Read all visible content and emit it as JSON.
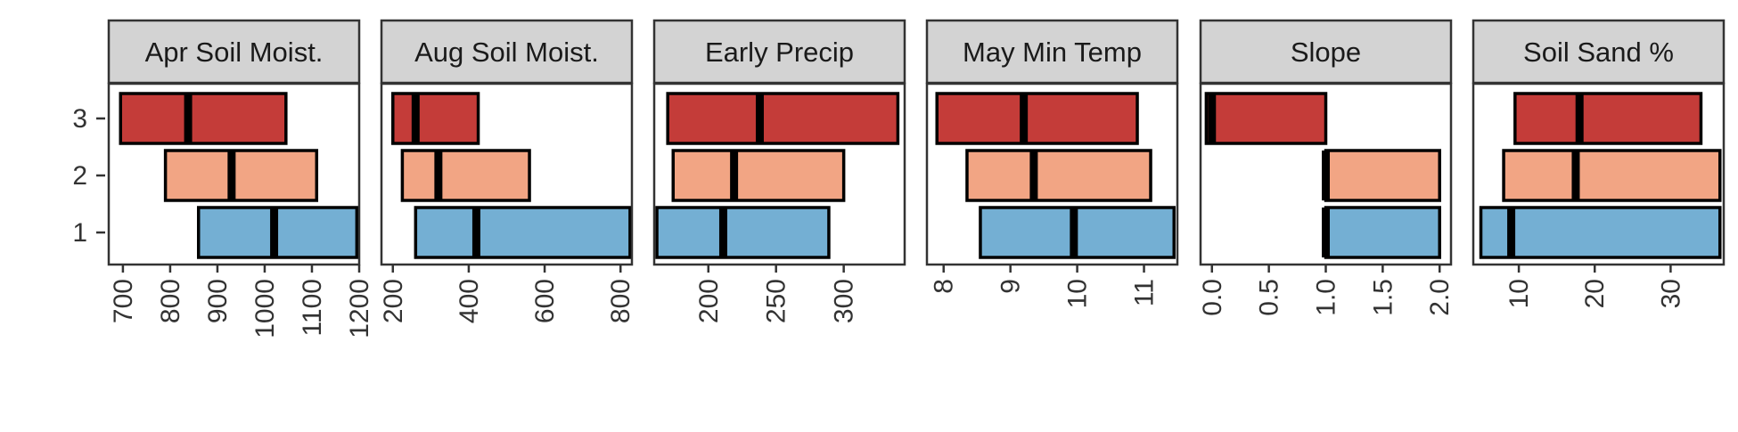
{
  "chart_data": {
    "type": "bar",
    "subtype": "faceted floating boxplot-style bars (range with median line)",
    "y_categories": [
      "1",
      "2",
      "3"
    ],
    "colors": {
      "1": "#74afd3",
      "2": "#f2a584",
      "3": "#c43c39"
    },
    "panels": [
      {
        "title": "Apr Soil Moist.",
        "xlim": [
          670,
          1200
        ],
        "ticks": [
          700,
          800,
          900,
          1000,
          1100,
          1200
        ],
        "tick_labels": [
          "700",
          "800",
          "900",
          "1000",
          "1100",
          "1200"
        ],
        "bars": [
          {
            "category": "3",
            "low": 695,
            "median": 838,
            "high": 1045
          },
          {
            "category": "2",
            "low": 790,
            "median": 930,
            "high": 1110
          },
          {
            "category": "1",
            "low": 860,
            "median": 1020,
            "high": 1195
          }
        ]
      },
      {
        "title": "Aug Soil Moist.",
        "xlim": [
          170,
          830
        ],
        "ticks": [
          200,
          400,
          600,
          800
        ],
        "tick_labels": [
          "200",
          "400",
          "600",
          "800"
        ],
        "bars": [
          {
            "category": "3",
            "low": 200,
            "median": 260,
            "high": 425
          },
          {
            "category": "2",
            "low": 225,
            "median": 320,
            "high": 560
          },
          {
            "category": "1",
            "low": 260,
            "median": 420,
            "high": 825
          }
        ]
      },
      {
        "title": "Early Precip",
        "xlim": [
          160,
          345
        ],
        "ticks": [
          200,
          250,
          300
        ],
        "tick_labels": [
          "200",
          "250",
          "300"
        ],
        "bars": [
          {
            "category": "3",
            "low": 170,
            "median": 238,
            "high": 340
          },
          {
            "category": "2",
            "low": 174,
            "median": 219,
            "high": 300
          },
          {
            "category": "1",
            "low": 162,
            "median": 211,
            "high": 289
          }
        ]
      },
      {
        "title": "May Min Temp",
        "xlim": [
          7.75,
          11.5
        ],
        "ticks": [
          8,
          9,
          10,
          11
        ],
        "tick_labels": [
          "8",
          "9",
          "10",
          "11"
        ],
        "bars": [
          {
            "category": "3",
            "low": 7.9,
            "median": 9.2,
            "high": 10.9
          },
          {
            "category": "2",
            "low": 8.35,
            "median": 9.35,
            "high": 11.1
          },
          {
            "category": "1",
            "low": 8.55,
            "median": 9.95,
            "high": 11.45
          }
        ]
      },
      {
        "title": "Slope",
        "xlim": [
          -0.1,
          2.1
        ],
        "ticks": [
          0.0,
          0.5,
          1.0,
          1.5,
          2.0
        ],
        "tick_labels": [
          "0.0",
          "0.5",
          "1.0",
          "1.5",
          "2.0"
        ],
        "bars": [
          {
            "category": "3",
            "low": -0.05,
            "median": 0.0,
            "high": 1.0
          },
          {
            "category": "2",
            "low": 1.0,
            "median": 1.0,
            "high": 2.0
          },
          {
            "category": "1",
            "low": 1.0,
            "median": 1.0,
            "high": 2.0
          }
        ]
      },
      {
        "title": "Soil Sand %",
        "xlim": [
          4,
          37
        ],
        "ticks": [
          10,
          20,
          30
        ],
        "tick_labels": [
          "10",
          "20",
          "30"
        ],
        "bars": [
          {
            "category": "3",
            "low": 9.5,
            "median": 18,
            "high": 34
          },
          {
            "category": "2",
            "low": 8,
            "median": 17.5,
            "high": 36.5
          },
          {
            "category": "1",
            "low": 5,
            "median": 9,
            "high": 36.5
          }
        ]
      }
    ],
    "xlabel": "",
    "ylabel": "",
    "legend": "none",
    "grid": false
  }
}
